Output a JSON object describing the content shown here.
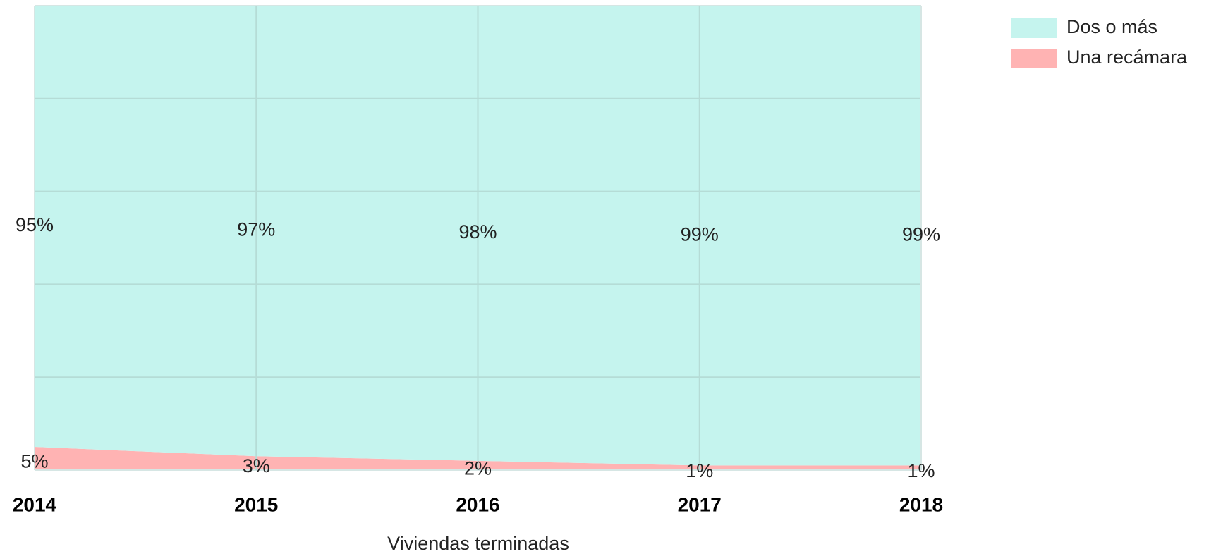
{
  "chart_data": {
    "type": "stacked_area",
    "xlabel": "Viviendas terminadas",
    "categories": [
      "2014",
      "2015",
      "2016",
      "2017",
      "2018"
    ],
    "series": [
      {
        "name": "Dos o más",
        "color": "#c5f4ee",
        "values": [
          95,
          97,
          98,
          99,
          99
        ],
        "value_labels": [
          "95%",
          "97%",
          "98%",
          "99%",
          "99%"
        ]
      },
      {
        "name": "Una recámara",
        "color": "#ffb3b3",
        "values": [
          5,
          3,
          2,
          1,
          1
        ],
        "value_labels": [
          "5%",
          "3%",
          "2%",
          "1%",
          "1%"
        ]
      }
    ],
    "ylim": [
      0,
      100
    ],
    "yticks": [
      0,
      20,
      40,
      60,
      80,
      100
    ],
    "grid": true,
    "legend": "right"
  }
}
